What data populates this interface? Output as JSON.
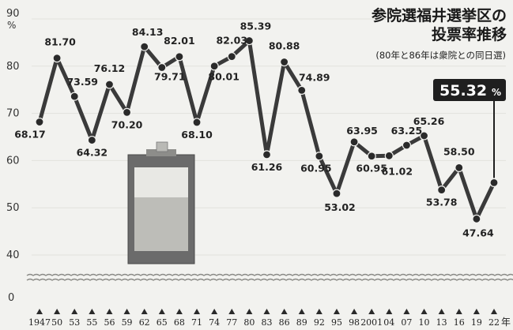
{
  "chart_data": {
    "type": "line",
    "title_lines": [
      "参院選福井選挙区の",
      "投票率推移"
    ],
    "subtitle": "(80年と86年は衆院との同日選)",
    "y_unit": "%",
    "y_axis_top_label": "90",
    "y_ticks": [
      "90",
      "80",
      "70",
      "60",
      "50",
      "40"
    ],
    "y_zero_label": "0",
    "ylim": [
      40,
      90
    ],
    "axis_break": true,
    "x_suffix": "年",
    "categories": [
      "1947",
      "50",
      "53",
      "55",
      "56",
      "59",
      "62",
      "65",
      "68",
      "71",
      "74",
      "77",
      "80",
      "83",
      "86",
      "89",
      "92",
      "95",
      "98",
      "2001",
      "04",
      "07",
      "10",
      "13",
      "16",
      "19",
      "22"
    ],
    "values": [
      68.17,
      81.7,
      73.59,
      64.32,
      76.12,
      70.2,
      84.13,
      79.71,
      82.01,
      68.1,
      80.01,
      82.03,
      85.39,
      61.26,
      80.88,
      74.89,
      60.95,
      53.02,
      63.95,
      60.95,
      61.02,
      63.25,
      65.26,
      53.78,
      58.5,
      47.64,
      55.32
    ],
    "data_labels": [
      "68.17",
      "81.70",
      "73.59",
      "64.32",
      "76.12",
      "70.20",
      "84.13",
      "79.71",
      "82.01",
      "68.10",
      "80.01",
      "82.03",
      "85.39",
      "61.26",
      "80.88",
      "74.89",
      "60.95",
      "53.02",
      "63.95",
      "60.95",
      "61.02",
      "63.25",
      "65.26",
      "53.78",
      "58.50",
      "47.64",
      ""
    ],
    "highlight": {
      "value": "55.32",
      "unit": "%"
    },
    "line_color": "#3a3a3a",
    "marker_color": "#2a2a2a",
    "highlight_bg": "#1f1f1f"
  }
}
